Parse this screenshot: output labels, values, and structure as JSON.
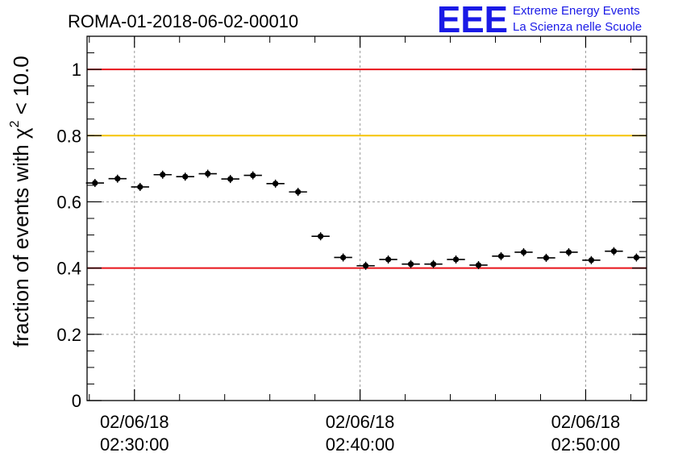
{
  "header": {
    "title": "ROMA-01-2018-06-02-00010",
    "logo_text": "EEE",
    "logo_line1": "Extreme Energy Events",
    "logo_line2": "La Scienza nelle Scuole"
  },
  "colors": {
    "logo": "#1a1ae6",
    "red_line": "#e8141a",
    "yellow_line": "#f5c400",
    "grid": "#9a9a9a",
    "points": "#000000"
  },
  "chart_data": {
    "type": "scatter",
    "title": "ROMA-01-2018-06-02-00010",
    "ylabel": "fraction of events with χ² < 10.0",
    "ylabel_parts": {
      "pre": "fraction of events with ",
      "chi": "χ",
      "sup": "2",
      "post": " < 10.0"
    },
    "xlabel": "",
    "ylim": [
      0,
      1.1
    ],
    "xlim_minutes": [
      -2.1,
      22.7
    ],
    "x_unit": "minutes after 02/06/18 02:30:00",
    "y_ticks": [
      0,
      0.2,
      0.4,
      0.6,
      0.8,
      1
    ],
    "y_tick_labels": [
      "0",
      "0.2",
      "0.4",
      "0.6",
      "0.8",
      "1"
    ],
    "x_ticks": [
      {
        "minutes": 0,
        "date": "02/06/18",
        "time": "02:30:00"
      },
      {
        "minutes": 10,
        "date": "02/06/18",
        "time": "02:40:00"
      },
      {
        "minutes": 20,
        "date": "02/06/18",
        "time": "02:50:00"
      }
    ],
    "grid": true,
    "reference_lines": [
      {
        "y": 1.0,
        "color": "#e8141a"
      },
      {
        "y": 0.8,
        "color": "#f5c400"
      },
      {
        "y": 0.4,
        "color": "#e8141a"
      }
    ],
    "bin_width_minutes": 0.8,
    "points": [
      {
        "x": -1.75,
        "y": 0.657
      },
      {
        "x": -0.75,
        "y": 0.67
      },
      {
        "x": 0.25,
        "y": 0.645
      },
      {
        "x": 1.25,
        "y": 0.682
      },
      {
        "x": 2.25,
        "y": 0.676
      },
      {
        "x": 3.25,
        "y": 0.685
      },
      {
        "x": 4.25,
        "y": 0.669
      },
      {
        "x": 5.25,
        "y": 0.68
      },
      {
        "x": 6.25,
        "y": 0.655
      },
      {
        "x": 7.25,
        "y": 0.63
      },
      {
        "x": 8.25,
        "y": 0.496
      },
      {
        "x": 9.25,
        "y": 0.432
      },
      {
        "x": 10.25,
        "y": 0.407
      },
      {
        "x": 11.25,
        "y": 0.426
      },
      {
        "x": 12.25,
        "y": 0.412
      },
      {
        "x": 13.25,
        "y": 0.412
      },
      {
        "x": 14.25,
        "y": 0.426
      },
      {
        "x": 15.25,
        "y": 0.409
      },
      {
        "x": 16.25,
        "y": 0.436
      },
      {
        "x": 17.25,
        "y": 0.448
      },
      {
        "x": 18.25,
        "y": 0.431
      },
      {
        "x": 19.25,
        "y": 0.448
      },
      {
        "x": 20.25,
        "y": 0.424
      },
      {
        "x": 21.25,
        "y": 0.451
      },
      {
        "x": 22.25,
        "y": 0.432
      }
    ]
  }
}
